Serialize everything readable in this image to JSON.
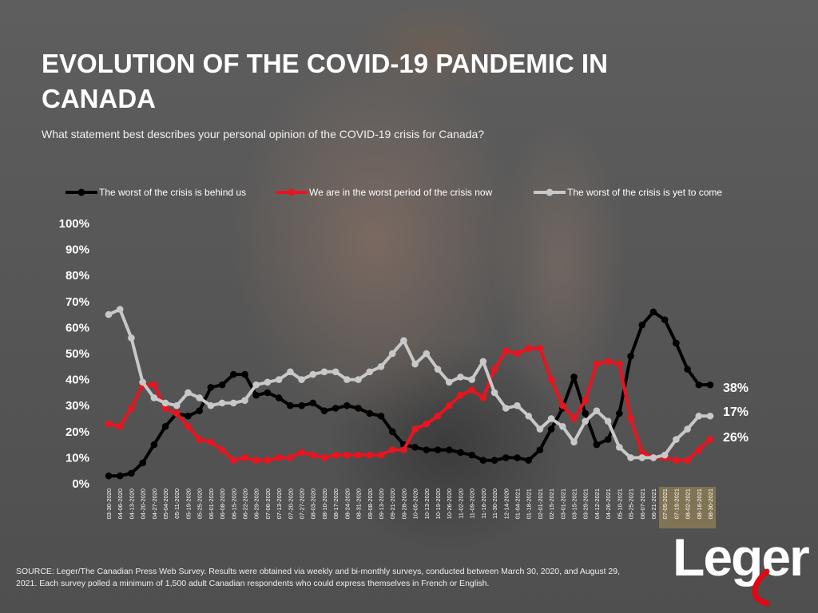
{
  "title": "EVOLUTION OF THE COVID-19 PANDEMIC IN CANADA",
  "subtitle": "What statement best describes your personal opinion of the COVID-19 crisis for Canada?",
  "source": "SOURCE: Leger/The Canadian Press Web Survey. Results were obtained via weekly and bi-monthly surveys, conducted between March 30, 2020, and August 29, 2021. Each survey polled a minimum of 1,500 adult Canadian respondents who could express themselves in French or English.",
  "logo": {
    "text": "Leger",
    "accent": "#e30613"
  },
  "chart_data": {
    "type": "line",
    "ylim": [
      0,
      100
    ],
    "yticks": [
      "0%",
      "10%",
      "20%",
      "30%",
      "40%",
      "50%",
      "60%",
      "70%",
      "80%",
      "90%",
      "100%"
    ],
    "grid": false,
    "legend": "top",
    "highlighted_categories": [
      "07-05-2021",
      "07-19-2021",
      "08-02-2021",
      "08-16-2021",
      "08-30-2021"
    ],
    "categories": [
      "03-30-2020",
      "04-06-2020",
      "04-13-2020",
      "04-20-2020",
      "04-27-2020",
      "05-04-2020",
      "05-11-2020",
      "05-19-2020",
      "05-25-2020",
      "06-01-2020",
      "06-08-2020",
      "06-15-2020",
      "06-22-2020",
      "06-29-2020",
      "07-06-2020",
      "07-13-2020",
      "07-20-2020",
      "07-27-2020",
      "08-03-2020",
      "08-10-2020",
      "08-17-2020",
      "08-24-2020",
      "08-31-2020",
      "09-08-2020",
      "09-13-2020",
      "09-21-2020",
      "09-28-2020",
      "10-05-2020",
      "10-13-2020",
      "10-19-2020",
      "10-26-2020",
      "11-02-2020",
      "11-09-2020",
      "11-16-2020",
      "11-30-2020",
      "12-14-2020",
      "01-04-2021",
      "01-18-2021",
      "02-01-2021",
      "02-15-2021",
      "03-01-2021",
      "03-15-2021",
      "03-29-2021",
      "04-12-2021",
      "04-26-2021",
      "05-10-2021",
      "05-25-2021",
      "06-07-2021",
      "06-21-2021",
      "07-05-2021",
      "07-19-2021",
      "08-02-2021",
      "08-16-2021",
      "08-30-2021"
    ],
    "series": [
      {
        "name": "The worst of the crisis is behind us",
        "color": "#000000",
        "values": [
          3,
          3,
          4,
          8,
          15,
          22,
          27,
          26,
          28,
          37,
          38,
          42,
          42,
          34,
          35,
          33,
          30,
          30,
          31,
          28,
          29,
          30,
          29,
          27,
          26,
          20,
          15,
          14,
          13,
          13,
          13,
          12,
          11,
          9,
          9,
          10,
          10,
          9,
          13,
          21,
          29,
          41,
          27,
          15,
          17,
          27,
          49,
          61,
          66,
          63,
          54,
          44,
          38,
          38
        ],
        "end_label": "38%"
      },
      {
        "name": "We are in the worst period of the crisis now",
        "color": "#e8141f",
        "values": [
          23,
          22,
          29,
          38,
          38,
          29,
          27,
          22,
          17,
          16,
          13,
          9,
          10,
          9,
          9,
          10,
          10,
          12,
          11,
          10,
          11,
          11,
          11,
          11,
          11,
          13,
          13,
          21,
          23,
          26,
          30,
          34,
          36,
          33,
          44,
          51,
          50,
          52,
          52,
          40,
          30,
          25,
          32,
          46,
          47,
          46,
          25,
          12,
          10,
          10,
          9,
          9,
          13,
          17
        ],
        "end_label": "17%"
      },
      {
        "name": "The worst of the crisis is yet to come",
        "color": "#c8c8c8",
        "values": [
          65,
          67,
          56,
          39,
          33,
          31,
          30,
          35,
          33,
          30,
          31,
          31,
          32,
          38,
          39,
          40,
          43,
          40,
          42,
          43,
          43,
          40,
          40,
          43,
          45,
          50,
          55,
          46,
          50,
          44,
          39,
          41,
          40,
          47,
          35,
          29,
          30,
          26,
          21,
          25,
          22,
          16,
          24,
          28,
          24,
          14,
          10,
          10,
          10,
          11,
          17,
          21,
          26,
          26
        ],
        "end_label": "26%"
      }
    ]
  }
}
